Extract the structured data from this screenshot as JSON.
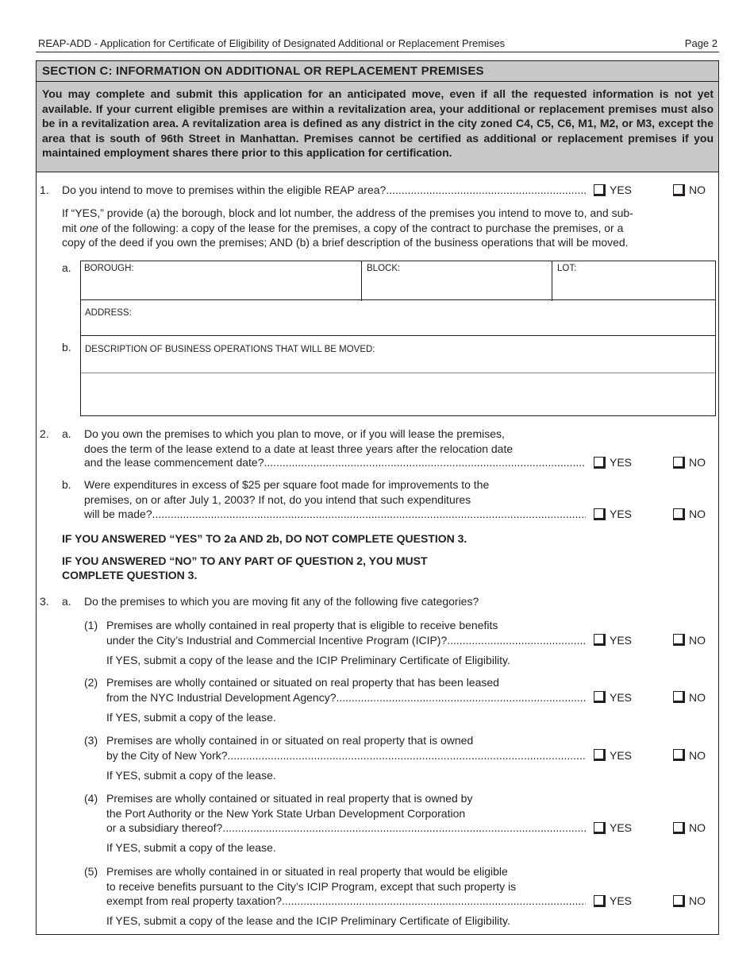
{
  "header": {
    "title": "REAP-ADD - Application for Certificate of Eligibility of Designated Additional or Replacement Premises",
    "page": "Page 2"
  },
  "section": {
    "title": "SECTION C: INFORMATION ON ADDITIONAL OR REPLACEMENT PREMISES",
    "intro": "You may complete and submit this application for an anticipated move, even if all the requested information is not yet available.  If your current eligible premises are within a revitalization area, your additional or replacement premises must also be in a revitalization area.  A revitalization area is defined as any district in the city zoned C4, C5, C6, M1, M2, or M3, except the area that is south of 96th Street in Manhattan.  Premises cannot be certified as additional or replacement premises if you maintained employment shares there prior to this application for certification."
  },
  "options": {
    "yes": "YES",
    "no": "NO"
  },
  "q1": {
    "num": "1.",
    "text": "Do you intend to move to premises within the eligible REAP area?",
    "instr": [
      "If “YES,” provide (a) the borough, block and lot number, the address of the premises you intend to move to, and sub-",
      "mit ",
      "one",
      " of the following: a copy of the lease for the premises, a copy of the contract to purchase the premises, or a",
      "copy of the deed if you own the premises; AND (b) a brief description of the business operations that will be moved."
    ],
    "a": "a.",
    "b": "b.",
    "fields": {
      "borough": "BOROUGH:",
      "block": "BLOCK:",
      "lot": "LOT:",
      "address": "ADDRESS:",
      "description": "DESCRIPTION OF BUSINESS OPERATIONS THAT WILL BE MOVED:"
    }
  },
  "q2": {
    "num": "2.",
    "a": {
      "label": "a.",
      "lines": [
        "Do you own the premises to which you plan to move, or if you will lease the premises,",
        "does the term of the lease extend to a date at least three years after the relocation date",
        "and the lease commencement date?"
      ]
    },
    "b": {
      "label": "b.",
      "lines": [
        "Were expenditures in excess of $25 per square foot made for improvements to the",
        "premises, on or after July 1, 2003?  If not, do you intend that such expenditures",
        "will be made?"
      ]
    },
    "note1": "IF YOU ANSWERED “YES” TO 2a AND 2b, DO NOT COMPLETE QUESTION 3.",
    "note2": [
      "IF YOU ANSWERED “NO” TO ANY PART OF QUESTION 2, YOU MUST",
      "COMPLETE QUESTION 3."
    ]
  },
  "q3": {
    "num": "3.",
    "a": "a.",
    "text": "Do the premises to which you are moving fit any of the following five categories?",
    "items": [
      {
        "num": "(1)",
        "lines": [
          "Premises are wholly contained in real property that is eligible to receive benefits",
          "under the City’s Industrial and Commercial Incentive Program (ICIP)?"
        ],
        "note": "If YES, submit a copy of the lease and the ICIP Preliminary Certificate of Eligibility."
      },
      {
        "num": "(2)",
        "lines": [
          "Premises are wholly contained or situated on real property that has been leased",
          "from the NYC Industrial Development Agency?"
        ],
        "note": "If YES, submit a copy of the lease."
      },
      {
        "num": "(3)",
        "lines": [
          "Premises are wholly contained in or situated on real property that is owned",
          "by the City of New York?"
        ],
        "note": "If YES, submit a copy of the lease."
      },
      {
        "num": "(4)",
        "lines": [
          "Premises are wholly contained or situated in real property that is owned by",
          "the Port Authority or the New York State Urban Development Corporation",
          "or a subsidiary thereof?"
        ],
        "note": "If YES, submit a copy of the lease."
      },
      {
        "num": "(5)",
        "lines": [
          "Premises are wholly contained in or situated in real property that would be eligible",
          "to receive benefits pursuant to the City’s ICIP Program, except that such property is",
          "exempt from real property taxation?"
        ],
        "note": "If YES, submit a copy of the lease and the ICIP Preliminary Certificate of Eligibility."
      }
    ]
  }
}
